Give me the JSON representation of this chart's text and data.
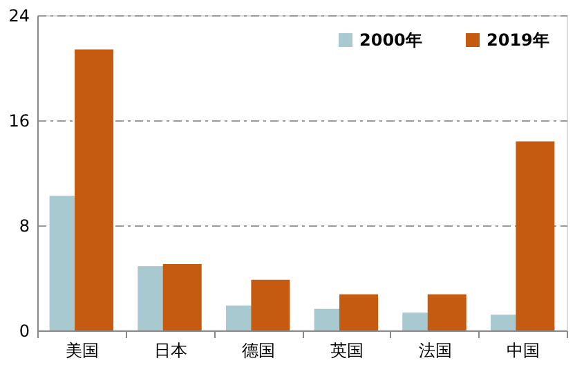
{
  "chart_data": {
    "type": "bar",
    "categories": [
      "美国",
      "日本",
      "德国",
      "英国",
      "法国",
      "中国"
    ],
    "series": [
      {
        "name": "2000年",
        "color": "#a9c9d0",
        "values": [
          10.25,
          4.9,
          1.9,
          1.65,
          1.35,
          1.2
        ]
      },
      {
        "name": "2019年",
        "color": "#c55a11",
        "values": [
          21.4,
          5.05,
          3.85,
          2.75,
          2.75,
          14.4
        ]
      }
    ],
    "ylim": [
      0,
      24
    ],
    "yticks": [
      0,
      8,
      16,
      24
    ],
    "grid": "y",
    "legend": "top right"
  }
}
